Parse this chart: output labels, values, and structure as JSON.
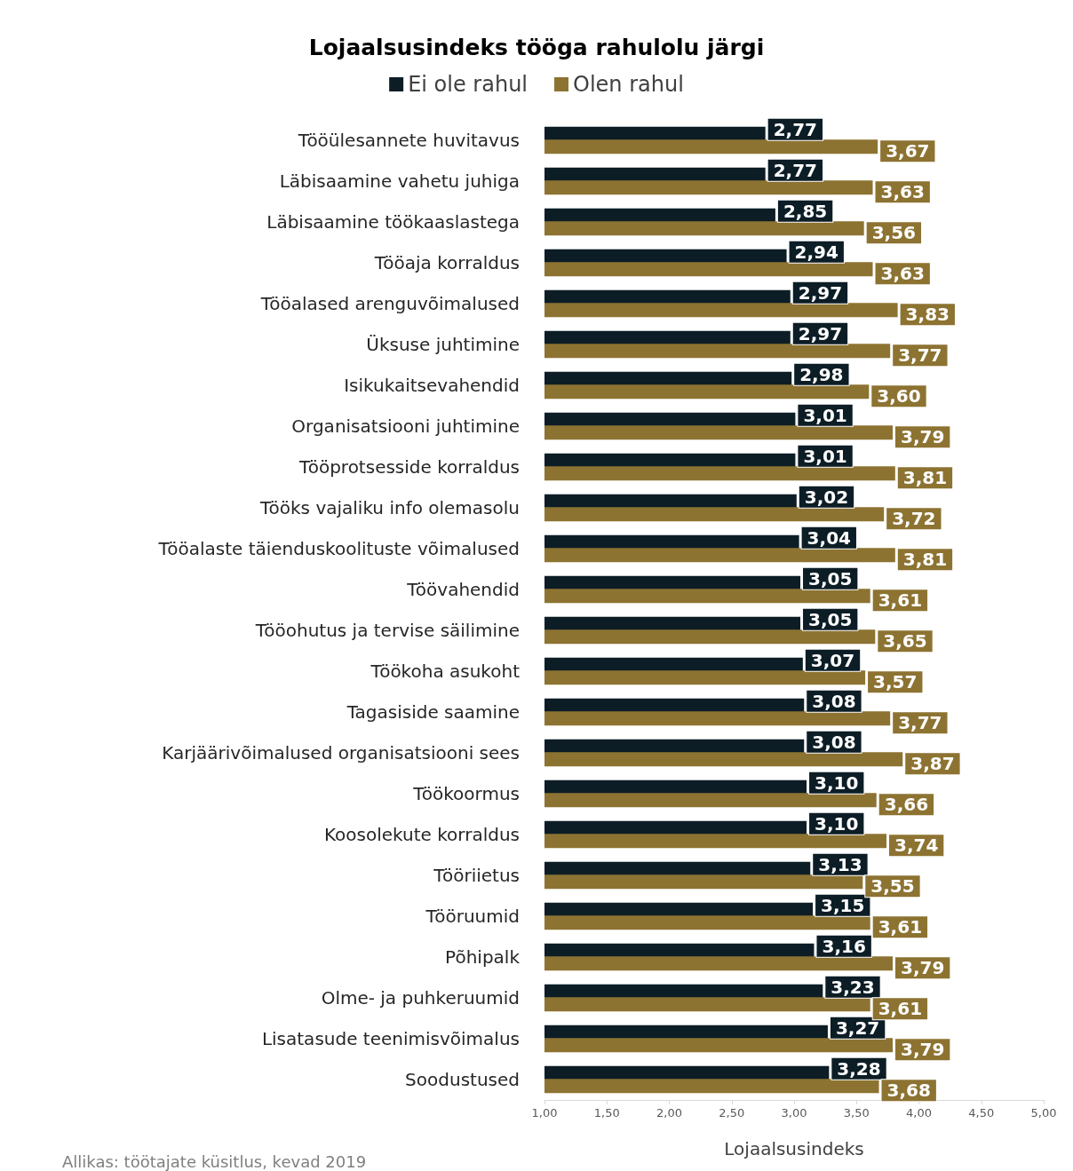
{
  "chart_data": {
    "type": "bar",
    "orientation": "horizontal",
    "title": "Lojaalsusindeks tööga rahulolu järgi",
    "xlabel": "Lojaalsusindeks",
    "legend": "top",
    "categories": [
      "Tööülesannete huvitavus",
      "Läbisaamine vahetu juhiga",
      "Läbisaamine töökaaslastega",
      "Tööaja korraldus",
      "Tööalased arenguvõimalused",
      "Üksuse juhtimine",
      "Isikukaitsevahendid",
      "Organisatsiooni juhtimine",
      "Tööprotsesside korraldus",
      "Tööks vajaliku info olemasolu",
      "Tööalaste täienduskoolituste võimalused",
      "Töövahendid",
      "Tööohutus ja tervise säilimine",
      "Töökoha asukoht",
      "Tagasiside saamine",
      "Karjäärivõimalused organisatsiooni sees",
      "Töökoormus",
      "Koosolekute korraldus",
      "Tööriietus",
      "Tööruumid",
      "Põhipalk",
      "Olme- ja puhkeruumid",
      "Lisatasude teenimisvõimalus",
      "Soodustused"
    ],
    "series": [
      {
        "name": "Ei ole rahul",
        "color": "#0c1d26",
        "values": [
          2.77,
          2.77,
          2.85,
          2.94,
          2.97,
          2.97,
          2.98,
          3.01,
          3.01,
          3.02,
          3.04,
          3.05,
          3.05,
          3.07,
          3.08,
          3.08,
          3.1,
          3.1,
          3.13,
          3.15,
          3.16,
          3.23,
          3.27,
          3.28
        ],
        "value_labels": [
          "2,77",
          "2,77",
          "2,85",
          "2,94",
          "2,97",
          "2,97",
          "2,98",
          "3,01",
          "3,01",
          "3,02",
          "3,04",
          "3,05",
          "3,05",
          "3,07",
          "3,08",
          "3,08",
          "3,10",
          "3,10",
          "3,13",
          "3,15",
          "3,16",
          "3,23",
          "3,27",
          "3,28"
        ]
      },
      {
        "name": "Olen rahul",
        "color": "#8d7332",
        "values": [
          3.67,
          3.63,
          3.56,
          3.63,
          3.83,
          3.77,
          3.6,
          3.79,
          3.81,
          3.72,
          3.81,
          3.61,
          3.65,
          3.57,
          3.77,
          3.87,
          3.66,
          3.74,
          3.55,
          3.61,
          3.79,
          3.61,
          3.79,
          3.68
        ],
        "value_labels": [
          "3,67",
          "3,63",
          "3,56",
          "3,63",
          "3,83",
          "3,77",
          "3,60",
          "3,79",
          "3,81",
          "3,72",
          "3,81",
          "3,61",
          "3,65",
          "3,57",
          "3,77",
          "3,87",
          "3,66",
          "3,74",
          "3,55",
          "3,61",
          "3,79",
          "3,61",
          "3,79",
          "3,68"
        ]
      }
    ],
    "xlim": [
      1,
      5
    ],
    "xticks": [
      {
        "value": 1,
        "label": "1,00"
      },
      {
        "value": 1.5,
        "label": "1,50"
      },
      {
        "value": 2,
        "label": "2,00"
      },
      {
        "value": 2.5,
        "label": "2,50"
      },
      {
        "value": 3,
        "label": "3,00"
      },
      {
        "value": 3.5,
        "label": "3,50"
      },
      {
        "value": 4,
        "label": "4,00"
      },
      {
        "value": 4.5,
        "label": "4,50"
      },
      {
        "value": 5,
        "label": "5,00"
      }
    ],
    "grid": false,
    "annotations": [
      "Allikas: töötajate küsitlus, kevad 2019"
    ]
  }
}
